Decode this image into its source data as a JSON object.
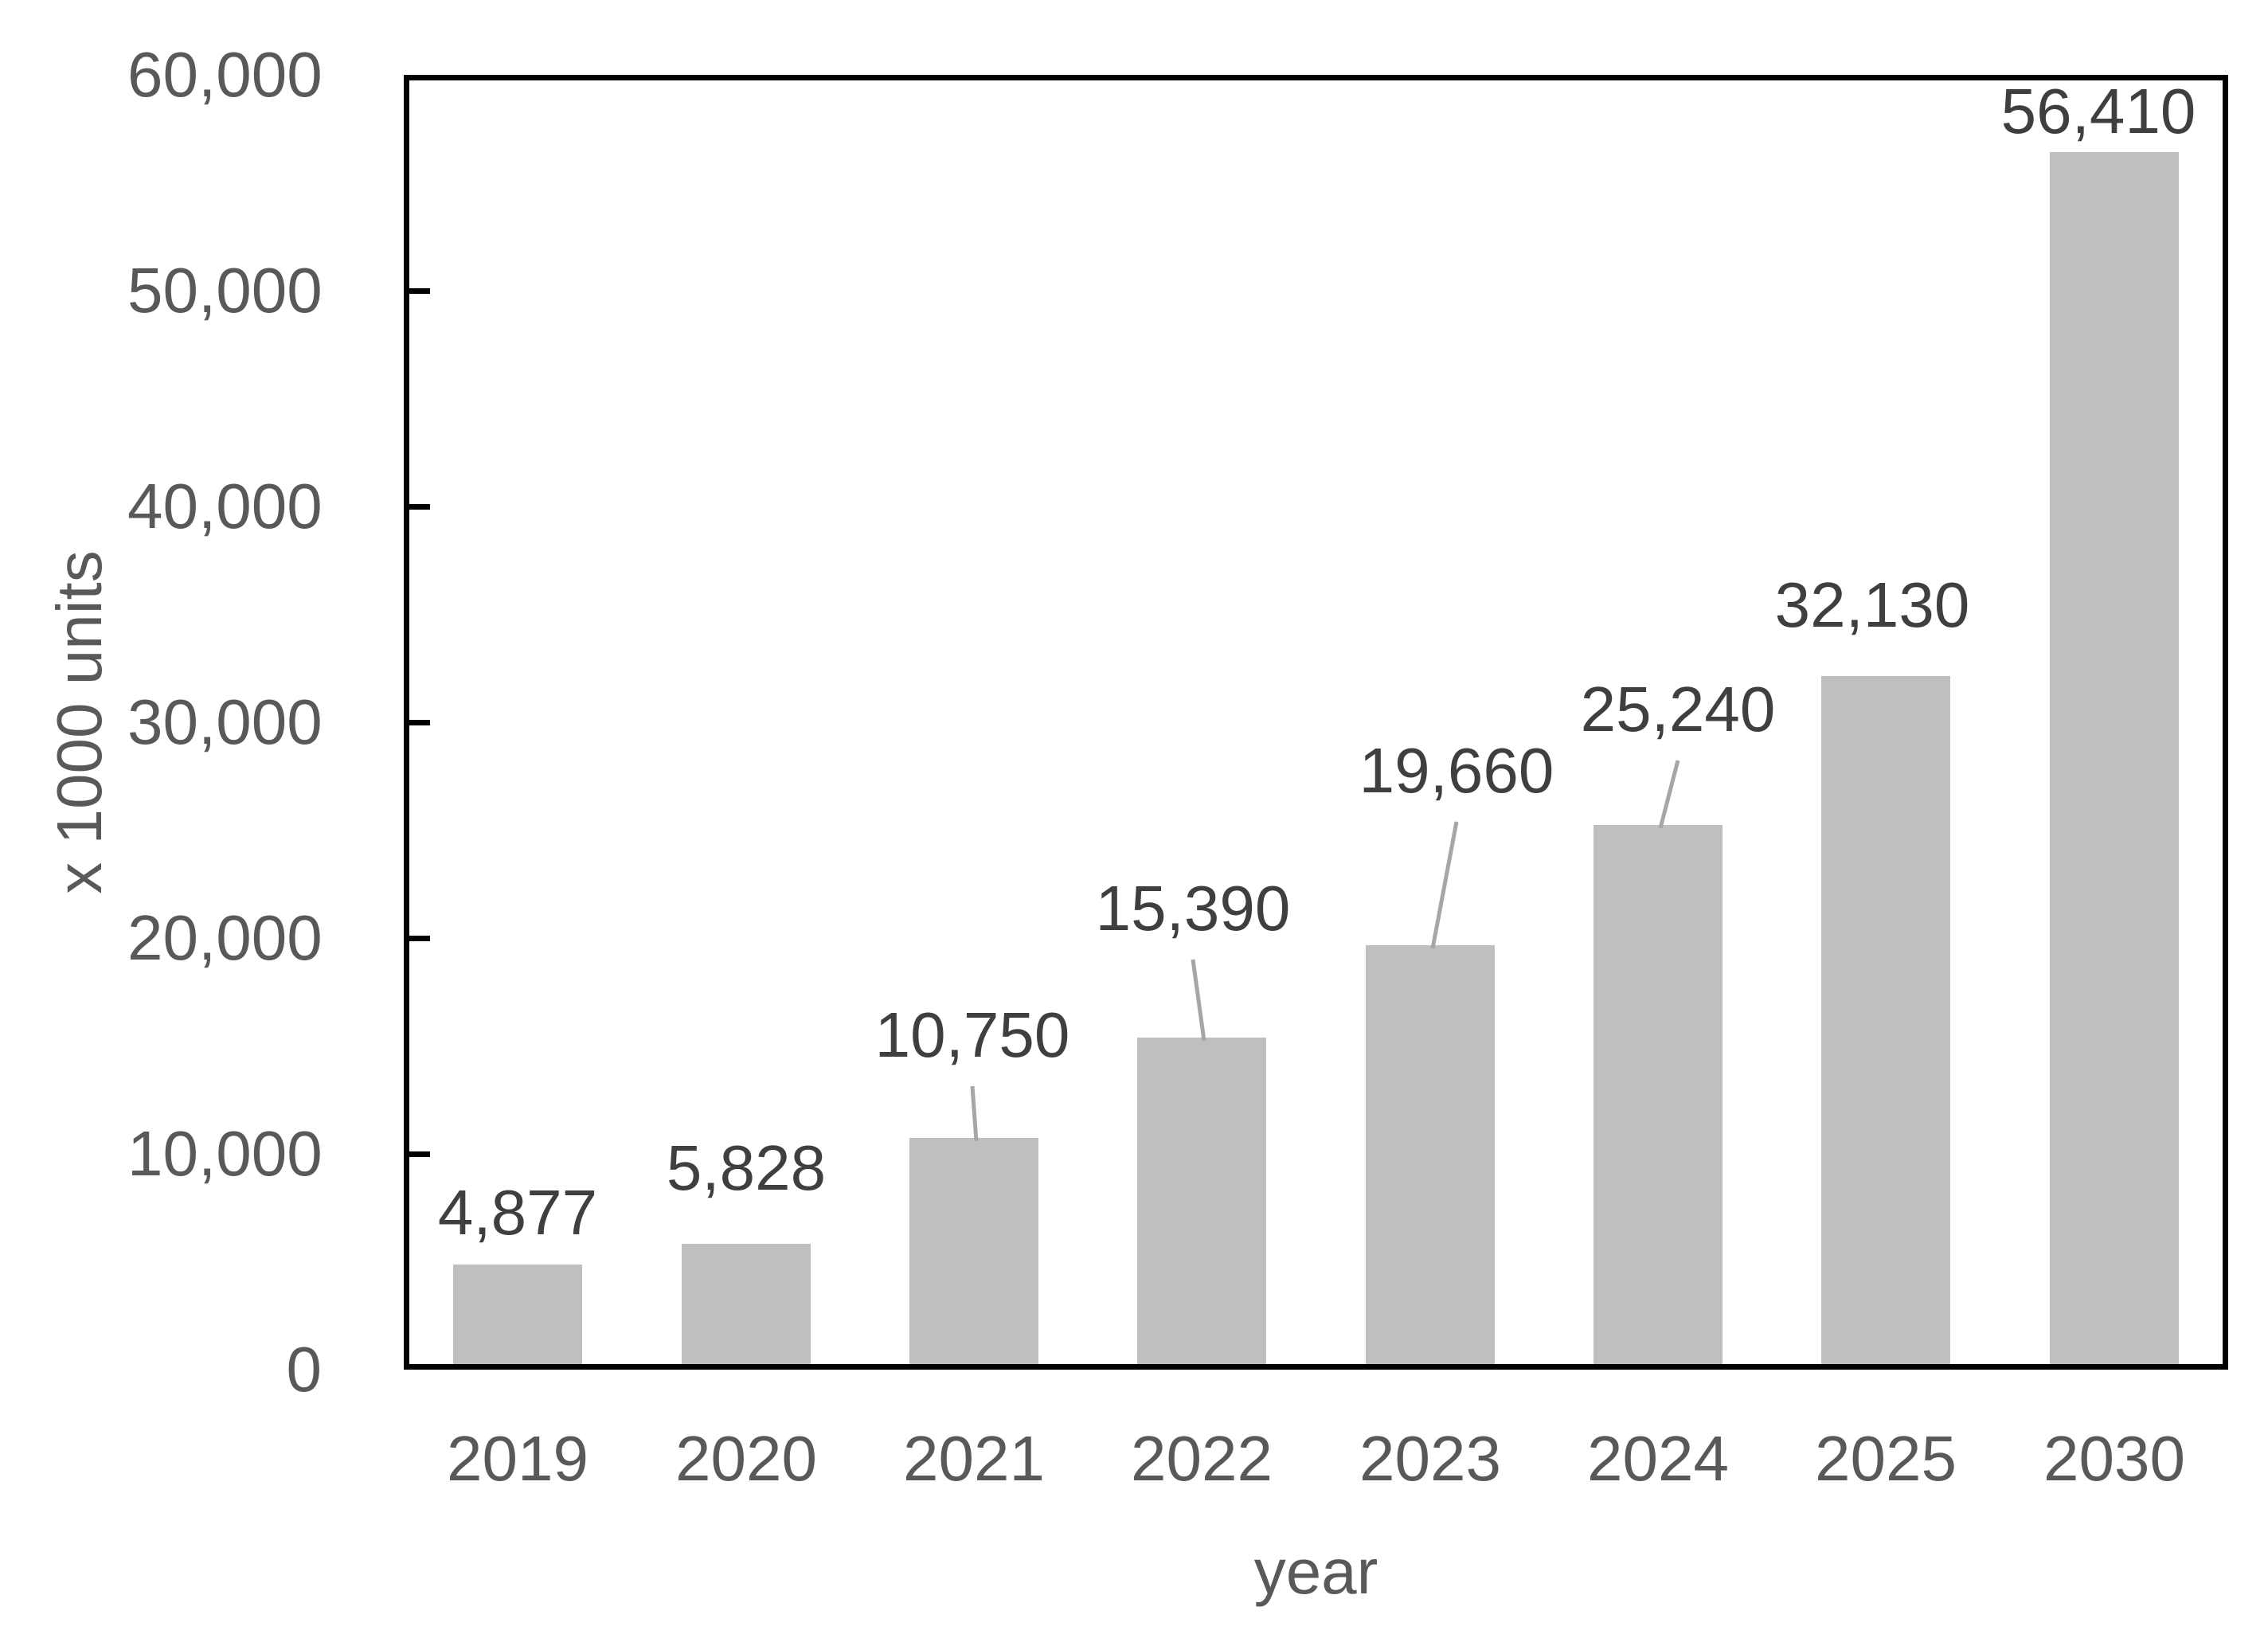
{
  "chart_data": {
    "type": "bar",
    "title": "",
    "categories": [
      "2019",
      "2020",
      "2021",
      "2022",
      "2023",
      "2024",
      "2025",
      "2030"
    ],
    "values": [
      4877,
      5828,
      10750,
      15390,
      19660,
      25240,
      32130,
      56410
    ],
    "data_labels": [
      "4,877",
      "5,828",
      "10,750",
      "15,390",
      "19,660",
      "25,240",
      "32,130",
      "56,410"
    ],
    "xlabel": "year",
    "ylabel": "x 1000 units",
    "ylim": [
      0,
      60000
    ],
    "ytick_interval": 10000,
    "ytick_labels": [
      "0",
      "10,000",
      "20,000",
      "30,000",
      "40,000",
      "50,000",
      "60,000"
    ],
    "grid": "off",
    "legend": "none",
    "tick_direction": "inside",
    "leader_line_years": [
      "2021",
      "2022",
      "2023",
      "2024"
    ],
    "colors": {
      "bar": "#BFBFBF",
      "leader_line": "#A6A6A6",
      "data_label_text": "#3F3F3F",
      "axis_text": "#595959",
      "axis_line": "#000000",
      "background": "#FFFFFF"
    }
  }
}
